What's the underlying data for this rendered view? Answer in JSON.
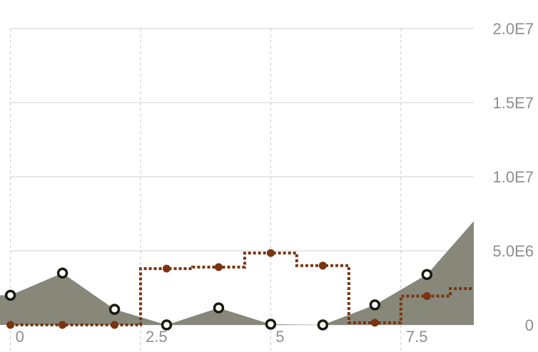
{
  "chart_data": {
    "type": "area",
    "xlim": [
      -0.2,
      8.9
    ],
    "ylim": [
      0,
      20000000
    ],
    "grid": true,
    "x_ticks": [
      {
        "value": 0,
        "label": "0"
      },
      {
        "value": 2.5,
        "label": "2.5"
      },
      {
        "value": 5,
        "label": "5"
      },
      {
        "value": 7.5,
        "label": "7.5"
      }
    ],
    "y_ticks": [
      {
        "value": 0,
        "label": "0"
      },
      {
        "value": 5000000,
        "label": "5.0E6"
      },
      {
        "value": 10000000,
        "label": "1.0E7"
      },
      {
        "value": 15000000,
        "label": "1.5E7"
      },
      {
        "value": 20000000,
        "label": "2.0E7"
      }
    ],
    "series": [
      {
        "style": "area",
        "color": "#87887a",
        "marker_color": "#1a1a0e",
        "x": [
          -0.2,
          0,
          1,
          2,
          3,
          4,
          5,
          6,
          7,
          8,
          8.9
        ],
        "y": [
          2000000,
          2000000,
          3500000,
          1050000,
          0,
          1150000,
          50000,
          0,
          1350000,
          3400000,
          7000000
        ],
        "marker_x": [
          0,
          1,
          2,
          3,
          4,
          5,
          6,
          7,
          8
        ]
      },
      {
        "style": "step",
        "color": "#7a3410",
        "x": [
          0,
          1,
          2,
          3,
          4,
          5,
          6,
          7,
          8,
          8.9
        ],
        "y": [
          0,
          0,
          0,
          3800000,
          3900000,
          4850000,
          4000000,
          150000,
          1950000,
          2450000
        ],
        "marker_x": [
          0,
          1,
          2,
          3,
          4,
          5,
          6,
          7,
          8
        ]
      }
    ]
  }
}
